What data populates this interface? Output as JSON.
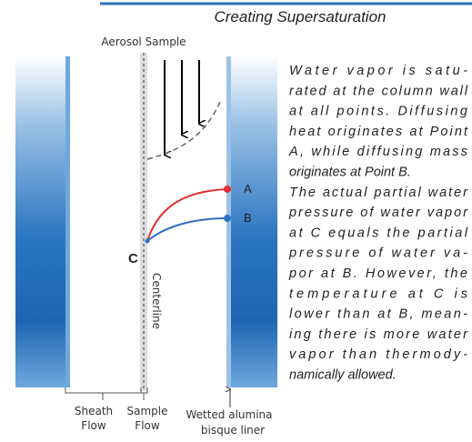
{
  "title": "Creating Supersaturation",
  "labels": {
    "aerosol": "Aerosol Sample",
    "a": "A",
    "b": "B",
    "c": "C",
    "centerline": "Centerline",
    "sheath": [
      "Sheath",
      "Flow"
    ],
    "sample": [
      "Sample",
      "Flow"
    ],
    "liner": [
      "Wetted alumina",
      "bisque liner"
    ]
  },
  "description": [
    "Water vapor is satu-",
    "rated at the column wall",
    "at all points. Diffusing",
    "heat originates at Point",
    "A, while diffusing mass",
    "originates at Point B.",
    "The actual partial water",
    "pressure of water vapor",
    "at C equals the partial",
    "pressure of water va-",
    "por at B. However, the",
    "temperature at C is",
    "lower than at B, mean-",
    "ing there is more water",
    "vapor than thermody-",
    "namically allowed."
  ]
}
